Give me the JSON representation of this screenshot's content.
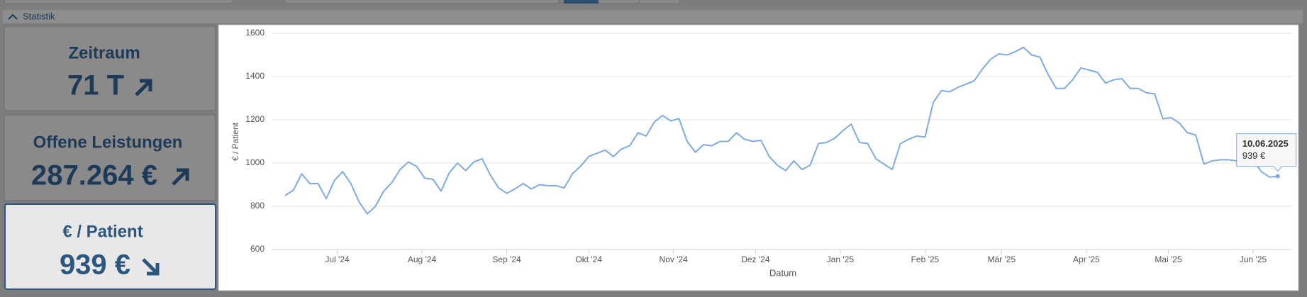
{
  "header": {
    "title": "Statistik"
  },
  "cards": [
    {
      "label": "Zeitraum",
      "value": "71 T"
    },
    {
      "label": "Offene Leistungen",
      "value": "287.264 €"
    },
    {
      "label": "€ / Patient",
      "value": "939 €"
    }
  ],
  "chart_data": {
    "type": "line",
    "x_label": "Datum",
    "y_label": "€ / Patient",
    "color": "#7dabe2",
    "grid": true,
    "xlim": [
      "2024-06-07",
      "2025-06-15"
    ],
    "xticks": [
      {
        "value": "2024-07-01",
        "label": "Jul '24"
      },
      {
        "value": "2024-08-01",
        "label": "Aug '24"
      },
      {
        "value": "2024-09-01",
        "label": "Sep '24"
      },
      {
        "value": "2024-10-01",
        "label": "Okt '24"
      },
      {
        "value": "2024-11-01",
        "label": "Nov '24"
      },
      {
        "value": "2024-12-01",
        "label": "Dez '24"
      },
      {
        "value": "2025-01-01",
        "label": "Jan '25"
      },
      {
        "value": "2025-02-01",
        "label": "Feb '25"
      },
      {
        "value": "2025-03-01",
        "label": "Mär '25"
      },
      {
        "value": "2025-04-01",
        "label": "Apr '25"
      },
      {
        "value": "2025-05-01",
        "label": "Mai '25"
      },
      {
        "value": "2025-06-01",
        "label": "Jun '25"
      }
    ],
    "ylim": [
      600,
      1600
    ],
    "yticks": [
      600,
      800,
      1000,
      1200,
      1400,
      1600
    ],
    "x": [
      "2024-06-12",
      "2024-06-15",
      "2024-06-18",
      "2024-06-21",
      "2024-06-24",
      "2024-06-27",
      "2024-06-30",
      "2024-07-03",
      "2024-07-06",
      "2024-07-09",
      "2024-07-12",
      "2024-07-15",
      "2024-07-18",
      "2024-07-21",
      "2024-07-24",
      "2024-07-27",
      "2024-07-30",
      "2024-08-02",
      "2024-08-05",
      "2024-08-08",
      "2024-08-11",
      "2024-08-14",
      "2024-08-17",
      "2024-08-20",
      "2024-08-23",
      "2024-08-26",
      "2024-08-29",
      "2024-09-01",
      "2024-09-04",
      "2024-09-07",
      "2024-09-10",
      "2024-09-13",
      "2024-09-16",
      "2024-09-19",
      "2024-09-22",
      "2024-09-25",
      "2024-09-28",
      "2024-10-01",
      "2024-10-04",
      "2024-10-07",
      "2024-10-10",
      "2024-10-13",
      "2024-10-16",
      "2024-10-19",
      "2024-10-22",
      "2024-10-25",
      "2024-10-28",
      "2024-10-31",
      "2024-11-03",
      "2024-11-06",
      "2024-11-09",
      "2024-11-12",
      "2024-11-15",
      "2024-11-18",
      "2024-11-21",
      "2024-11-24",
      "2024-11-27",
      "2024-11-30",
      "2024-12-03",
      "2024-12-06",
      "2024-12-09",
      "2024-12-12",
      "2024-12-15",
      "2024-12-18",
      "2024-12-21",
      "2024-12-24",
      "2024-12-27",
      "2024-12-30",
      "2025-01-02",
      "2025-01-05",
      "2025-01-08",
      "2025-01-11",
      "2025-01-14",
      "2025-01-17",
      "2025-01-20",
      "2025-01-23",
      "2025-01-26",
      "2025-01-29",
      "2025-02-01",
      "2025-02-04",
      "2025-02-07",
      "2025-02-10",
      "2025-02-13",
      "2025-02-16",
      "2025-02-19",
      "2025-02-22",
      "2025-02-25",
      "2025-02-28",
      "2025-03-03",
      "2025-03-06",
      "2025-03-09",
      "2025-03-12",
      "2025-03-15",
      "2025-03-18",
      "2025-03-21",
      "2025-03-24",
      "2025-03-27",
      "2025-03-30",
      "2025-04-02",
      "2025-04-05",
      "2025-04-08",
      "2025-04-11",
      "2025-04-14",
      "2025-04-17",
      "2025-04-20",
      "2025-04-23",
      "2025-04-26",
      "2025-04-29",
      "2025-05-02",
      "2025-05-05",
      "2025-05-08",
      "2025-05-11",
      "2025-05-14",
      "2025-05-17",
      "2025-05-20",
      "2025-05-23",
      "2025-05-26",
      "2025-05-29",
      "2025-06-01",
      "2025-06-04",
      "2025-06-07",
      "2025-06-10"
    ],
    "values": [
      850,
      875,
      950,
      905,
      905,
      835,
      920,
      960,
      905,
      820,
      765,
      800,
      870,
      910,
      970,
      1005,
      985,
      930,
      925,
      870,
      955,
      1000,
      965,
      1005,
      1020,
      945,
      885,
      860,
      880,
      905,
      880,
      900,
      895,
      895,
      885,
      950,
      985,
      1030,
      1045,
      1060,
      1030,
      1065,
      1080,
      1140,
      1125,
      1190,
      1220,
      1195,
      1205,
      1100,
      1050,
      1085,
      1080,
      1100,
      1100,
      1140,
      1110,
      1100,
      1105,
      1030,
      990,
      965,
      1010,
      970,
      990,
      1090,
      1095,
      1115,
      1150,
      1180,
      1095,
      1090,
      1020,
      995,
      970,
      1090,
      1110,
      1125,
      1120,
      1280,
      1335,
      1330,
      1350,
      1365,
      1380,
      1435,
      1480,
      1505,
      1500,
      1515,
      1535,
      1500,
      1490,
      1410,
      1345,
      1345,
      1385,
      1440,
      1430,
      1420,
      1370,
      1385,
      1390,
      1345,
      1345,
      1325,
      1320,
      1205,
      1210,
      1185,
      1140,
      1130,
      995,
      1010,
      1015,
      1015,
      1010,
      1010,
      1015,
      960,
      935,
      939
    ],
    "tooltip": {
      "title": "10.06.2025",
      "label": "939 €"
    }
  }
}
